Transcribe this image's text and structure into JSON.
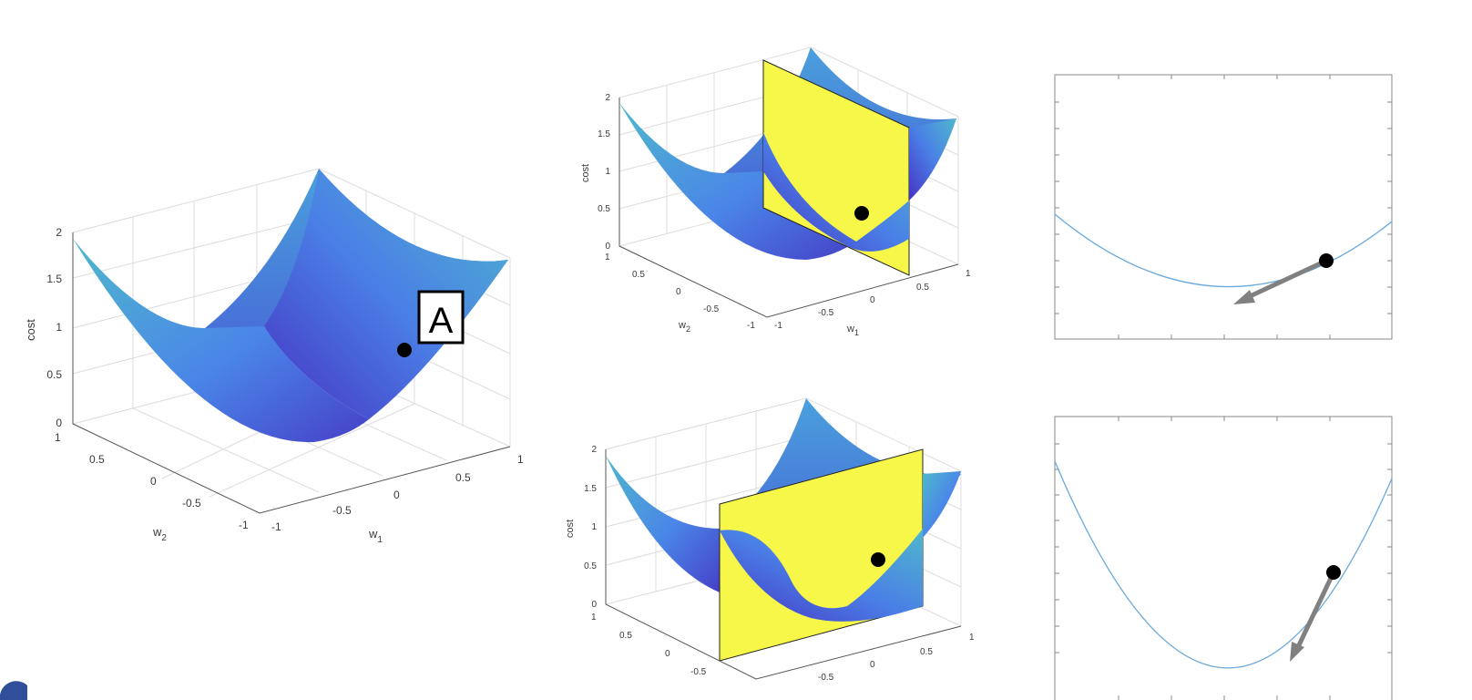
{
  "main_plot": {
    "z_ticks": [
      "0",
      "0.5",
      "1",
      "1.5",
      "2"
    ],
    "w2_ticks": [
      "1",
      "0.5",
      "0",
      "-0.5",
      "-1"
    ],
    "w1_ticks": [
      "-1",
      "-0.5",
      "0",
      "0.5",
      "1"
    ],
    "z_label": "cost",
    "w2_label": "w",
    "w2_sub": "2",
    "w1_label": "w",
    "w1_sub": "1",
    "point_label": "A"
  },
  "top_slice": {
    "z_ticks": [
      "0",
      "0.5",
      "1",
      "1.5",
      "2"
    ],
    "w2_ticks": [
      "1",
      "0.5",
      "0",
      "-0.5",
      "-1"
    ],
    "w1_ticks": [
      "-1",
      "-0.5",
      "0",
      "0.5",
      "1"
    ],
    "z_label": "cost",
    "w2_label": "w",
    "w2_sub": "2",
    "w1_label": "w",
    "w1_sub": "1"
  },
  "bottom_slice": {
    "z_ticks": [
      "0",
      "0.5",
      "1",
      "1.5",
      "2"
    ],
    "w2_ticks": [
      "1",
      "0.5",
      "0",
      "-0.5"
    ],
    "w1_ticks": [
      "-0.5",
      "0",
      "0.5",
      "1"
    ],
    "z_label": "cost"
  },
  "colors": {
    "surface_light": "#4fb3cf",
    "surface_mid": "#4a7fe6",
    "surface_dark": "#4630c0",
    "plane": "#f7f74a",
    "curve": "#6aa9dd",
    "arrow": "#808080",
    "point": "#000000"
  }
}
